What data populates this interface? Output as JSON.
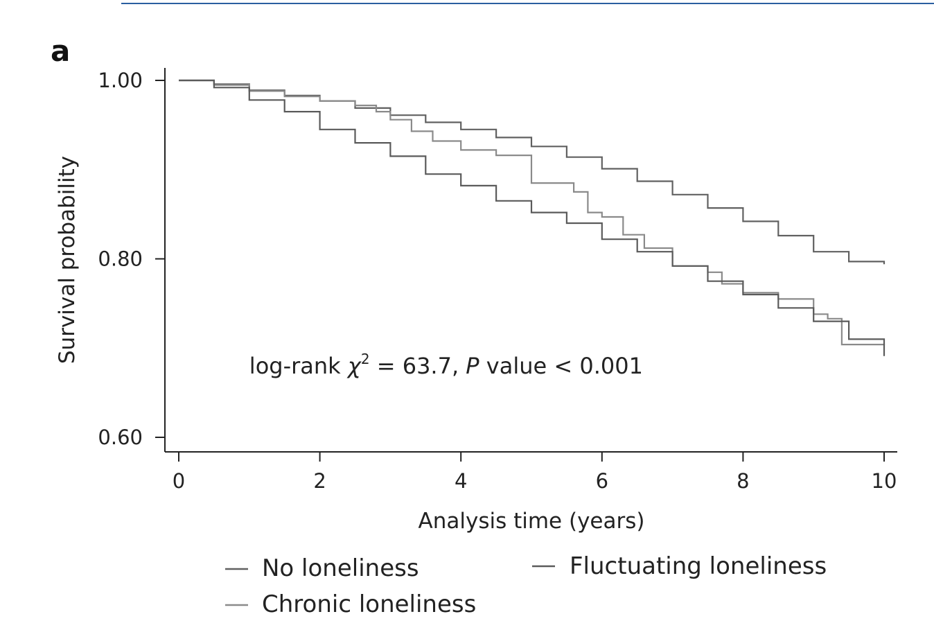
{
  "colors": {
    "link_rule": "#2a5fa0",
    "axis": "#222222",
    "no_loneliness": "#606060",
    "chronic_loneliness": "#8a8a8a",
    "fluctuating_loneliness": "#5a5a5a"
  },
  "panel_label": "a",
  "chart_data": {
    "type": "line",
    "step": true,
    "title": "",
    "xlabel": "Analysis time (years)",
    "ylabel": "Survival probability",
    "xlim": [
      0,
      10
    ],
    "ylim": [
      0.585,
      1.013
    ],
    "xticks": [
      0,
      2,
      4,
      6,
      8,
      10
    ],
    "xtick_labels": [
      "0",
      "2",
      "4",
      "6",
      "8",
      "10"
    ],
    "yticks": [
      0.6,
      0.8,
      1.0
    ],
    "ytick_labels": [
      "0.60",
      "0.80",
      "1.00"
    ],
    "annotation": {
      "prefix": "log-rank ",
      "chi": "χ",
      "sup": "2",
      "middle": " = 63.7, ",
      "p": "P",
      "suffix": " value < 0.001",
      "x": 1.0,
      "y": 0.68
    },
    "series": [
      {
        "name": "No loneliness",
        "key": "no_loneliness",
        "x": [
          0,
          0.5,
          1,
          1.5,
          2,
          2.5,
          3,
          3.5,
          4,
          4.5,
          5,
          5.5,
          6,
          6.5,
          7,
          7.5,
          8,
          8.5,
          9,
          9.5,
          10
        ],
        "y": [
          1.0,
          0.995,
          0.989,
          0.983,
          0.977,
          0.969,
          0.961,
          0.953,
          0.945,
          0.936,
          0.926,
          0.914,
          0.901,
          0.887,
          0.872,
          0.857,
          0.842,
          0.826,
          0.808,
          0.797,
          0.794
        ]
      },
      {
        "name": "Chronic loneliness",
        "key": "chronic_loneliness",
        "x": [
          0,
          0.5,
          1,
          1.5,
          2,
          2.5,
          2.8,
          3,
          3.3,
          3.6,
          4,
          4.5,
          5,
          5.6,
          5.8,
          6,
          6.3,
          6.6,
          7,
          7.5,
          7.7,
          8,
          8.5,
          9,
          9.2,
          9.4,
          10
        ],
        "y": [
          1.0,
          0.996,
          0.988,
          0.982,
          0.977,
          0.972,
          0.965,
          0.956,
          0.943,
          0.932,
          0.922,
          0.916,
          0.885,
          0.875,
          0.852,
          0.847,
          0.827,
          0.812,
          0.792,
          0.785,
          0.772,
          0.762,
          0.755,
          0.738,
          0.733,
          0.704,
          0.703
        ]
      },
      {
        "name": "Fluctuating loneliness",
        "key": "fluctuating_loneliness",
        "x": [
          0,
          0.5,
          1,
          1.5,
          2,
          2.5,
          3,
          3.5,
          4,
          4.5,
          5,
          5.5,
          6,
          6.5,
          7,
          7.5,
          8,
          8.5,
          9,
          9.5,
          10
        ],
        "y": [
          1.0,
          0.992,
          0.978,
          0.965,
          0.945,
          0.93,
          0.915,
          0.895,
          0.882,
          0.865,
          0.852,
          0.84,
          0.822,
          0.808,
          0.792,
          0.775,
          0.76,
          0.745,
          0.73,
          0.71,
          0.691
        ]
      }
    ],
    "legend": {
      "placement": "bottom",
      "entries": [
        "No loneliness",
        "Fluctuating loneliness",
        "Chronic loneliness"
      ]
    }
  }
}
